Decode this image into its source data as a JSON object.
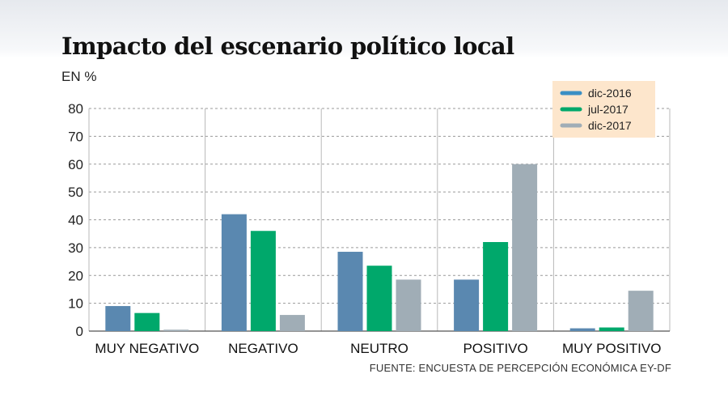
{
  "chart_data": {
    "type": "bar",
    "title": "Impacto del escenario político local",
    "unit_label": "EN %",
    "source": "FUENTE: ENCUESTA DE PERCEPCIÓN ECONÓMICA EY-DF",
    "categories": [
      "MUY NEGATIVO",
      "NEGATIVO",
      "NEUTRO",
      "POSITIVO",
      "MUY POSITIVO"
    ],
    "series": [
      {
        "name": "dic-2016",
        "values": [
          9,
          42,
          28.5,
          18.5,
          1
        ],
        "color": "#5a88b0",
        "legend_color": "#3a8fc4"
      },
      {
        "name": "jul-2017",
        "values": [
          6.5,
          36,
          23.5,
          32,
          1.3
        ],
        "color": "#00a86b",
        "legend_color": "#00a86b"
      },
      {
        "name": "dic-2017",
        "values": [
          0.5,
          5.8,
          18.5,
          60,
          14.5
        ],
        "color": "#a0adb6",
        "legend_color": "#a0adb6"
      }
    ],
    "yticks": [
      0,
      10,
      20,
      30,
      40,
      50,
      60,
      70,
      80
    ],
    "ylim": [
      0,
      80
    ],
    "grid": true,
    "legend_position": "top-right",
    "legend_background": "#fde6cc"
  }
}
